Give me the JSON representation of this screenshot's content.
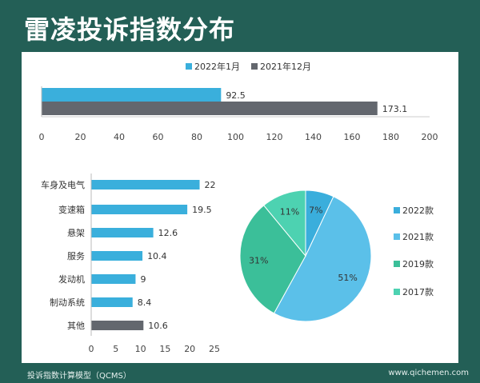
{
  "title": "雷凌投诉指数分布",
  "footer": "投诉指数计算模型（QCMS）",
  "site": "www.qichemen.com",
  "chart_data": [
    {
      "type": "bar",
      "orientation": "horizontal",
      "series": [
        {
          "name": "2022年1月",
          "values": [
            92.5
          ],
          "color": "#3aafdc"
        },
        {
          "name": "2021年12月",
          "values": [
            173.1
          ],
          "color": "#63676e"
        }
      ],
      "xlim": [
        0,
        200
      ],
      "xticks": [
        0,
        20,
        40,
        60,
        80,
        100,
        120,
        140,
        160,
        180,
        200
      ],
      "legend": "top"
    },
    {
      "type": "bar",
      "orientation": "horizontal",
      "categories": [
        "车身及电气",
        "变速箱",
        "悬架",
        "服务",
        "发动机",
        "制动系统",
        "其他"
      ],
      "values": [
        22,
        19.5,
        12.6,
        10.4,
        9,
        8.4,
        10.6
      ],
      "colors": [
        "#3aafdc",
        "#3aafdc",
        "#3aafdc",
        "#3aafdc",
        "#3aafdc",
        "#3aafdc",
        "#63676e"
      ],
      "xlim": [
        0,
        25
      ],
      "xticks": [
        0,
        5,
        10,
        15,
        20,
        25
      ]
    },
    {
      "type": "pie",
      "labels": [
        "2022款",
        "2021款",
        "2019款",
        "2017款"
      ],
      "values": [
        7,
        51,
        31,
        11
      ],
      "data_labels": [
        "7%",
        "51%",
        "31%",
        "11%"
      ],
      "colors": [
        "#3aaedc",
        "#5bc0e9",
        "#3bbf99",
        "#4dd2b1"
      ],
      "legend": "right"
    }
  ]
}
